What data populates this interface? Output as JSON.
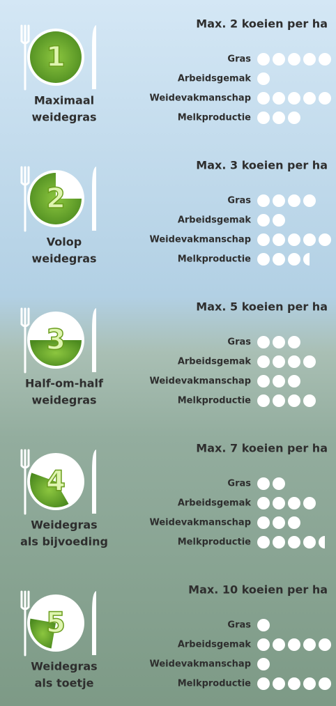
{
  "options": [
    {
      "number": 1,
      "name_lines": [
        "Maximaal",
        "weidegras"
      ],
      "heading": "Max. 2 koeien per ha",
      "ratings": [
        {
          "label": "Gras",
          "score": 5
        },
        {
          "label": "Arbeidsgemak",
          "score": 1
        },
        {
          "label": "Weidevakmanschap",
          "score": 5
        },
        {
          "label": "Melkproductie",
          "score": 3
        }
      ]
    },
    {
      "number": 2,
      "name_lines": [
        "Volop",
        "weidegras"
      ],
      "heading": "Max. 3 koeien per ha",
      "ratings": [
        {
          "label": "Gras",
          "score": 4
        },
        {
          "label": "Arbeidsgemak",
          "score": 2
        },
        {
          "label": "Weidevakmanschap",
          "score": 5
        },
        {
          "label": "Melkproductie",
          "score": 3.5
        }
      ]
    },
    {
      "number": 3,
      "name_lines": [
        "Half-om-half",
        "weidegras"
      ],
      "heading": "Max. 5 koeien per ha",
      "ratings": [
        {
          "label": "Gras",
          "score": 3
        },
        {
          "label": "Arbeidsgemak",
          "score": 4
        },
        {
          "label": "Weidevakmanschap",
          "score": 3
        },
        {
          "label": "Melkproductie",
          "score": 4
        }
      ]
    },
    {
      "number": 4,
      "name_lines": [
        "Weidegras",
        "als bijvoeding"
      ],
      "heading": "Max. 7 koeien per ha",
      "ratings": [
        {
          "label": "Gras",
          "score": 2
        },
        {
          "label": "Arbeidsgemak",
          "score": 4
        },
        {
          "label": "Weidevakmanschap",
          "score": 3
        },
        {
          "label": "Melkproductie",
          "score": 4.5
        }
      ]
    },
    {
      "number": 5,
      "name_lines": [
        "Weidegras",
        "als toetje"
      ],
      "heading": "Max. 10 koeien per ha",
      "ratings": [
        {
          "label": "Gras",
          "score": 1
        },
        {
          "label": "Arbeidsgemak",
          "score": 5
        },
        {
          "label": "Weidevakmanschap",
          "score": 1
        },
        {
          "label": "Melkproductie",
          "score": 5
        }
      ]
    }
  ]
}
